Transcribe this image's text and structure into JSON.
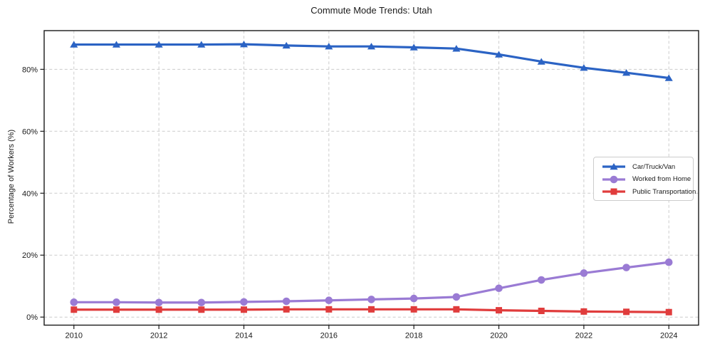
{
  "figure": {
    "background": "#ffffff",
    "text_color": "#1a1a1a",
    "grid_color": "#cccccc",
    "spine_color": "#1a1a1a"
  },
  "chart_data": {
    "type": "line",
    "title": "Commute Mode Trends: Utah",
    "xlabel": "",
    "ylabel": "Percentage of Workers (%)",
    "x": [
      2010,
      2011,
      2012,
      2013,
      2014,
      2015,
      2016,
      2017,
      2018,
      2019,
      2020,
      2021,
      2022,
      2023,
      2024
    ],
    "series": [
      {
        "name": "Car/Truck/Van",
        "color": "#2b63c4",
        "marker": "triangle",
        "values": [
          88.0,
          88.0,
          88.0,
          88.0,
          88.1,
          87.7,
          87.4,
          87.4,
          87.1,
          86.7,
          84.8,
          82.5,
          80.5,
          78.9,
          77.2
        ]
      },
      {
        "name": "Worked from Home",
        "color": "#9a7bd4",
        "marker": "circle",
        "values": [
          4.8,
          4.8,
          4.7,
          4.7,
          4.9,
          5.1,
          5.4,
          5.7,
          6.0,
          6.5,
          9.3,
          12.0,
          14.2,
          16.0,
          17.7
        ]
      },
      {
        "name": "Public Transportation",
        "color": "#e03c3c",
        "marker": "square",
        "values": [
          2.4,
          2.4,
          2.4,
          2.4,
          2.4,
          2.5,
          2.5,
          2.5,
          2.5,
          2.5,
          2.2,
          2.0,
          1.8,
          1.7,
          1.6
        ]
      }
    ],
    "xticks": {
      "values": [
        2010,
        2012,
        2014,
        2016,
        2018,
        2020,
        2022,
        2024
      ],
      "labels": [
        "2010",
        "2012",
        "2014",
        "2016",
        "2018",
        "2020",
        "2022",
        "2024"
      ]
    },
    "yticks": {
      "values": [
        0,
        20,
        40,
        60,
        80
      ],
      "labels": [
        "0%",
        "20%",
        "40%",
        "60%",
        "80%"
      ]
    },
    "xlim": [
      2009.3,
      2024.7
    ],
    "ylim": [
      -2.6,
      92.5
    ],
    "grid": true,
    "grid_style": "dashed",
    "legend_position": "center-right"
  }
}
